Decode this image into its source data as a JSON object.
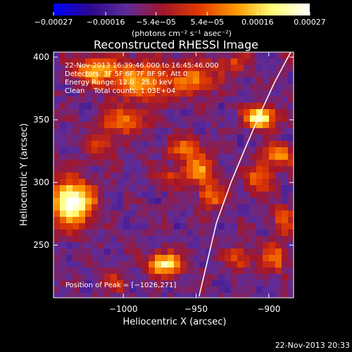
{
  "chart_data": {
    "type": "heatmap",
    "title": "Reconstructed RHESSI Image",
    "xlabel": "Heliocentric X (arcsec)",
    "ylabel": "Heliocentric Y (arcsec)",
    "x_range": [
      -1048,
      -883
    ],
    "y_range": [
      208,
      404
    ],
    "x_ticks": [
      -1000,
      -950,
      -900
    ],
    "x_tick_labels": [
      "−1000",
      "−950",
      "−900"
    ],
    "y_ticks": [
      250,
      300,
      350,
      400
    ],
    "y_tick_labels": [
      "250",
      "300",
      "350",
      "400"
    ],
    "grid": false,
    "colorbar": {
      "ticks": [
        -0.00027,
        -0.00016,
        -5.4e-05,
        5.4e-05,
        0.00016,
        0.00027
      ],
      "tick_labels": [
        "−0.00027",
        "−0.00016",
        "−5.4e−05",
        "5.4e−05",
        "0.00016",
        "0.00027"
      ],
      "label": "(photons cm⁻² s⁻¹ asec⁻²)",
      "range": [
        -0.00027,
        0.00027
      ],
      "colors": [
        "#0000ff",
        "#2b0a8f",
        "#5e2c99",
        "#a2162a",
        "#e23b00",
        "#ff9a00",
        "#ffff7a",
        "#ffffff"
      ]
    },
    "annotations": [
      "22-Nov-2013 16:39:46.000 to 16:45:46.000",
      "Detectors: 3F 5F 6F 7F 8F 9F, Att 0",
      "Energy Range: 12.0 - 25.0 keV",
      "Clean    Total counts: 1.03E+04",
      "Position of Peak = [−1026,271]"
    ],
    "peak": {
      "x": -1026,
      "y": 271
    },
    "limb_curve": {
      "x": [
        -885,
        -896,
        -906,
        -916,
        -926,
        -936,
        -948
      ],
      "y": [
        404,
        380,
        355,
        328,
        300,
        268,
        209
      ]
    },
    "bright_sources": [
      {
        "x": -1035,
        "y": 284,
        "amp": 1.0,
        "sx": 10,
        "sy": 12
      },
      {
        "x": -1018,
        "y": 389,
        "amp": 0.55,
        "sx": 12,
        "sy": 8
      },
      {
        "x": -985,
        "y": 381,
        "amp": 0.55,
        "sx": 14,
        "sy": 10
      },
      {
        "x": -1000,
        "y": 349,
        "amp": 0.45,
        "sx": 10,
        "sy": 8
      },
      {
        "x": -1015,
        "y": 330,
        "amp": 0.35,
        "sx": 7,
        "sy": 7
      },
      {
        "x": -950,
        "y": 383,
        "amp": 0.45,
        "sx": 9,
        "sy": 9
      },
      {
        "x": -906,
        "y": 352,
        "amp": 0.85,
        "sx": 7,
        "sy": 6
      },
      {
        "x": -958,
        "y": 328,
        "amp": 0.4,
        "sx": 8,
        "sy": 6
      },
      {
        "x": -948,
        "y": 311,
        "amp": 0.45,
        "sx": 8,
        "sy": 9
      },
      {
        "x": -968,
        "y": 304,
        "amp": 0.3,
        "sx": 6,
        "sy": 6
      },
      {
        "x": -940,
        "y": 289,
        "amp": 0.45,
        "sx": 6,
        "sy": 7
      },
      {
        "x": -906,
        "y": 303,
        "amp": 0.45,
        "sx": 6,
        "sy": 8
      },
      {
        "x": -893,
        "y": 322,
        "amp": 0.55,
        "sx": 7,
        "sy": 6
      },
      {
        "x": -972,
        "y": 235,
        "amp": 0.8,
        "sx": 8,
        "sy": 6
      },
      {
        "x": -920,
        "y": 240,
        "amp": 0.35,
        "sx": 6,
        "sy": 7
      },
      {
        "x": -896,
        "y": 240,
        "amp": 0.45,
        "sx": 6,
        "sy": 8
      },
      {
        "x": -1005,
        "y": 220,
        "amp": 0.3,
        "sx": 5,
        "sy": 5
      },
      {
        "x": -890,
        "y": 270,
        "amp": 0.35,
        "sx": 6,
        "sy": 8
      },
      {
        "x": -925,
        "y": 395,
        "amp": 0.3,
        "sx": 8,
        "sy": 6
      }
    ]
  },
  "footer": {
    "timestamp": "22-Nov-2013 20:33"
  }
}
